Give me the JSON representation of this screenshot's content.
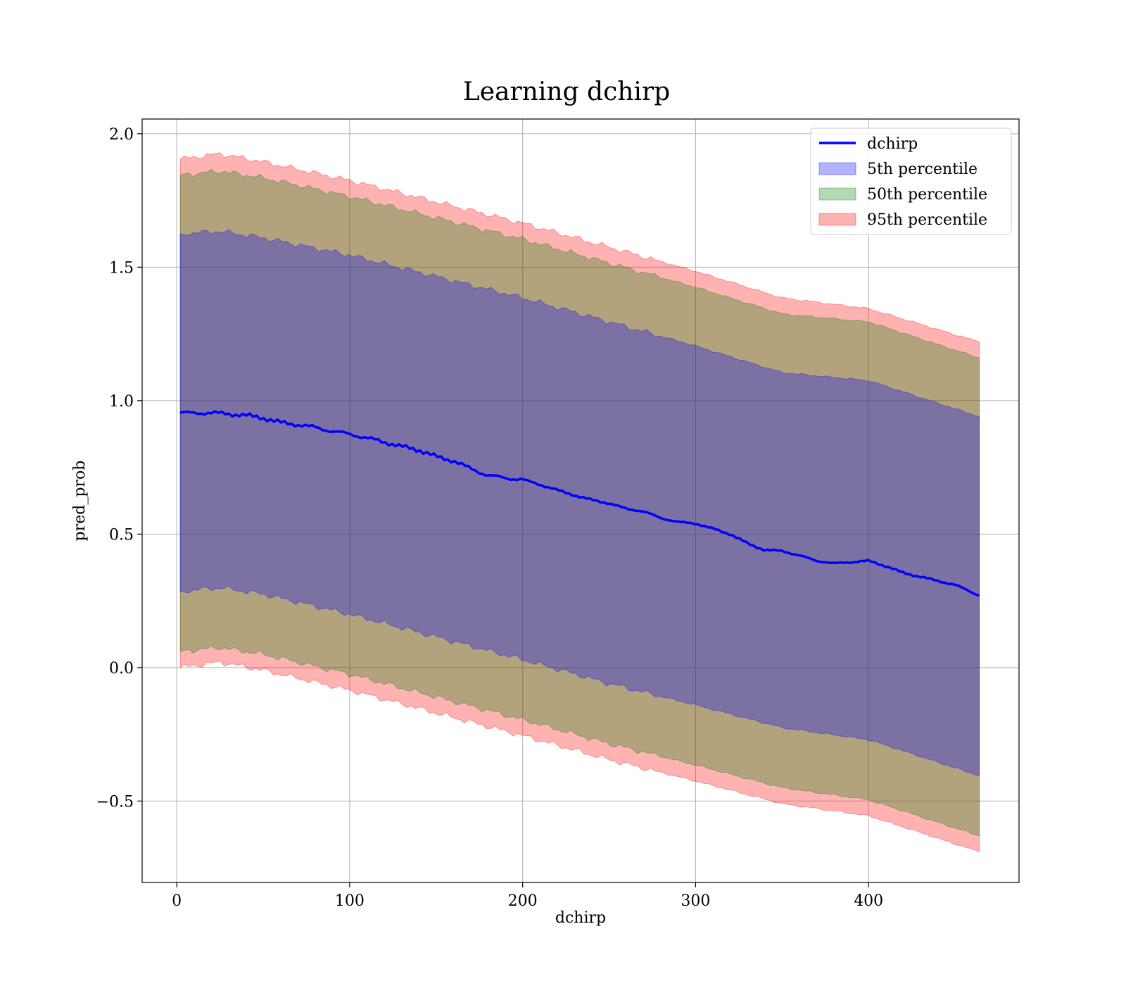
{
  "chart_data": {
    "type": "area",
    "title": "Learning dchirp",
    "xlabel": "dchirp",
    "ylabel": "pred_prob",
    "xlim": [
      -20,
      487
    ],
    "ylim": [
      -0.805,
      2.055
    ],
    "x_ticks": [
      0,
      100,
      200,
      300,
      400
    ],
    "y_ticks": [
      -0.5,
      0.0,
      0.5,
      1.0,
      1.5,
      2.0
    ],
    "x_tick_labels": [
      "0",
      "100",
      "200",
      "300",
      "400"
    ],
    "y_tick_labels": [
      "−0.5",
      "0.0",
      "0.5",
      "1.0",
      "1.5",
      "2.0"
    ],
    "grid": true,
    "legend_position": "upper right",
    "line": {
      "name": "dchirp",
      "color": "#0000ff",
      "x": [
        2,
        10,
        20,
        30,
        40,
        50,
        60,
        70,
        80,
        90,
        100,
        110,
        120,
        130,
        140,
        150,
        160,
        170,
        180,
        190,
        200,
        210,
        220,
        230,
        240,
        250,
        260,
        270,
        280,
        290,
        300,
        310,
        320,
        330,
        340,
        350,
        360,
        370,
        380,
        390,
        400,
        410,
        420,
        430,
        440,
        450,
        464
      ],
      "y": [
        0.955,
        0.953,
        0.955,
        0.95,
        0.945,
        0.935,
        0.918,
        0.91,
        0.9,
        0.885,
        0.875,
        0.86,
        0.845,
        0.828,
        0.815,
        0.79,
        0.775,
        0.745,
        0.72,
        0.71,
        0.705,
        0.685,
        0.665,
        0.645,
        0.628,
        0.615,
        0.595,
        0.585,
        0.56,
        0.545,
        0.54,
        0.52,
        0.5,
        0.465,
        0.44,
        0.437,
        0.42,
        0.4,
        0.39,
        0.395,
        0.4,
        0.38,
        0.355,
        0.34,
        0.325,
        0.31,
        0.27
      ]
    },
    "bands": [
      {
        "name": "95th percentile",
        "color": "#ff0000",
        "opacity": 0.3,
        "x": [
          2,
          25,
          50,
          100,
          150,
          200,
          250,
          300,
          350,
          400,
          464
        ],
        "upper": [
          1.905,
          1.925,
          1.895,
          1.825,
          1.745,
          1.665,
          1.575,
          1.485,
          1.385,
          1.345,
          1.22
        ],
        "lower": [
          0.0,
          0.02,
          -0.01,
          -0.085,
          -0.17,
          -0.255,
          -0.345,
          -0.425,
          -0.51,
          -0.555,
          -0.69
        ]
      },
      {
        "name": "50th percentile",
        "color": "#008000",
        "opacity": 0.3,
        "x": [
          2,
          25,
          50,
          100,
          150,
          200,
          250,
          300,
          350,
          400,
          464
        ],
        "upper": [
          1.845,
          1.86,
          1.835,
          1.765,
          1.685,
          1.605,
          1.515,
          1.425,
          1.325,
          1.295,
          1.16
        ],
        "lower": [
          0.06,
          0.075,
          0.05,
          -0.025,
          -0.11,
          -0.195,
          -0.285,
          -0.365,
          -0.45,
          -0.495,
          -0.63
        ]
      },
      {
        "name": "5th percentile",
        "color": "#0000ff",
        "opacity": 0.3,
        "x": [
          2,
          25,
          50,
          100,
          150,
          200,
          250,
          300,
          350,
          400,
          464
        ],
        "upper": [
          1.625,
          1.635,
          1.61,
          1.545,
          1.465,
          1.385,
          1.295,
          1.205,
          1.105,
          1.075,
          0.94
        ],
        "lower": [
          0.285,
          0.3,
          0.275,
          0.2,
          0.115,
          0.03,
          -0.06,
          -0.14,
          -0.225,
          -0.27,
          -0.405
        ]
      }
    ],
    "legend": [
      {
        "label": "dchirp",
        "kind": "line",
        "color": "#0000ff"
      },
      {
        "label": "5th percentile",
        "kind": "patch",
        "color": "#0000ff"
      },
      {
        "label": "50th percentile",
        "kind": "patch",
        "color": "#008000"
      },
      {
        "label": "95th percentile",
        "kind": "patch",
        "color": "#ff0000"
      }
    ]
  }
}
